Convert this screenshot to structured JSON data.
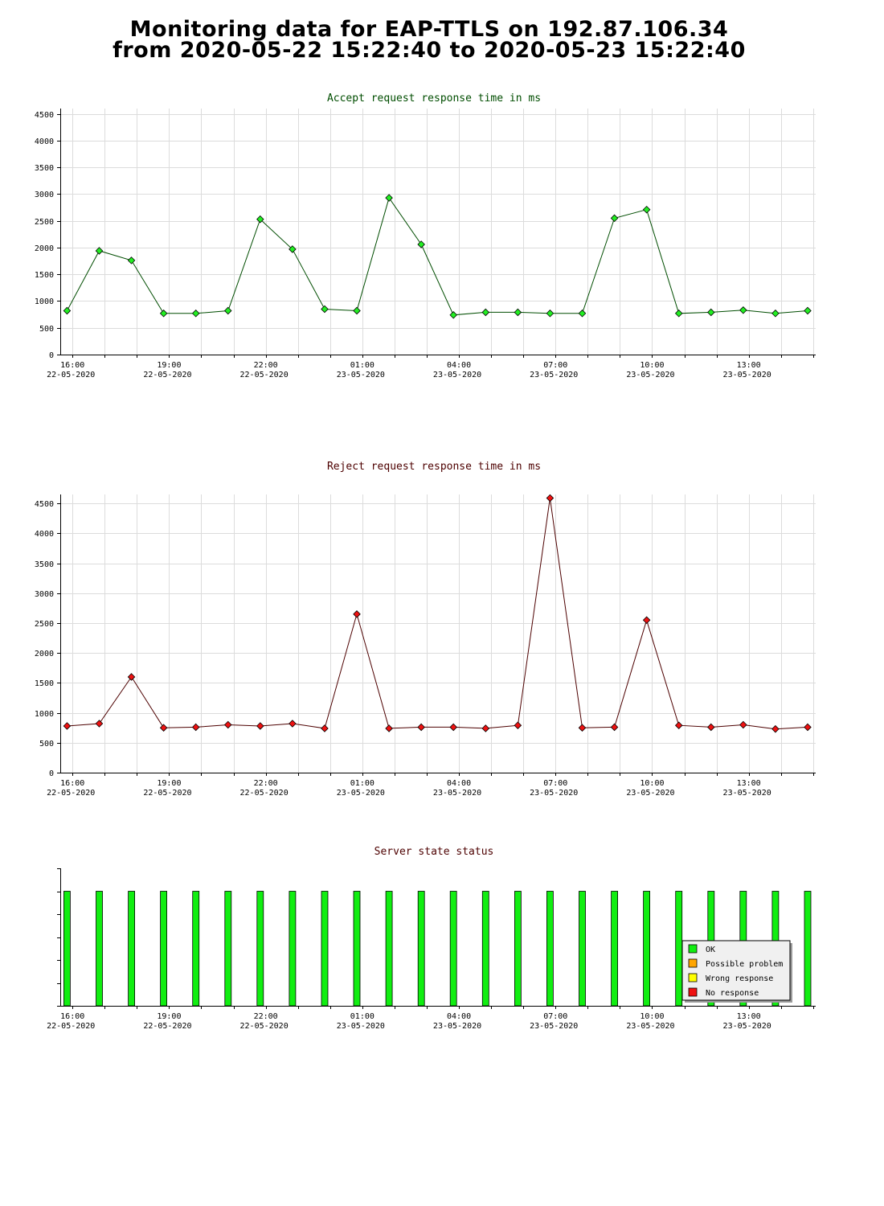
{
  "page": {
    "title_line1": "Monitoring data for EAP-TTLS on 192.87.106.34",
    "title_line2": "from 2020-05-22 15:22:40 to 2020-05-23 15:22:40"
  },
  "chart_data": [
    {
      "type": "line",
      "title": "Accept request response time in ms",
      "title_color": "#004d00",
      "line_color": "#004d00",
      "marker_color": "#22ee22",
      "ylim": [
        0,
        4600
      ],
      "yticks": [
        0,
        500,
        1000,
        1500,
        2000,
        2500,
        3000,
        3500,
        4000,
        4500
      ],
      "xlim": [
        15.62,
        39.08
      ],
      "x_tick_positions": [
        16,
        19,
        22,
        25,
        28,
        31,
        34,
        37
      ],
      "x_tick_labels": [
        [
          "16:00",
          "22-05-2020"
        ],
        [
          "19:00",
          "22-05-2020"
        ],
        [
          "22:00",
          "22-05-2020"
        ],
        [
          "01:00",
          "23-05-2020"
        ],
        [
          "04:00",
          "23-05-2020"
        ],
        [
          "07:00",
          "23-05-2020"
        ],
        [
          "10:00",
          "23-05-2020"
        ],
        [
          "13:00",
          "23-05-2020"
        ]
      ],
      "grid": true,
      "x": [
        15.83,
        16.83,
        17.83,
        18.83,
        19.83,
        20.83,
        21.83,
        22.83,
        23.83,
        24.83,
        25.83,
        26.83,
        27.83,
        28.83,
        29.83,
        30.83,
        31.83,
        32.83,
        33.83,
        34.83,
        35.83,
        36.83,
        37.83,
        38.83
      ],
      "values": [
        820,
        1940,
        1760,
        770,
        770,
        820,
        2530,
        1970,
        850,
        820,
        2930,
        2060,
        740,
        790,
        790,
        770,
        770,
        2550,
        2710,
        770,
        790,
        830,
        770,
        820
      ]
    },
    {
      "type": "line",
      "title": "Reject request response time in ms",
      "title_color": "#4d0000",
      "line_color": "#4d0000",
      "marker_color": "#ee1111",
      "ylim": [
        0,
        4650
      ],
      "yticks": [
        0,
        500,
        1000,
        1500,
        2000,
        2500,
        3000,
        3500,
        4000,
        4500
      ],
      "xlim": [
        15.62,
        39.08
      ],
      "x_tick_positions": [
        16,
        19,
        22,
        25,
        28,
        31,
        34,
        37
      ],
      "x_tick_labels": [
        [
          "16:00",
          "22-05-2020"
        ],
        [
          "19:00",
          "22-05-2020"
        ],
        [
          "22:00",
          "22-05-2020"
        ],
        [
          "01:00",
          "23-05-2020"
        ],
        [
          "04:00",
          "23-05-2020"
        ],
        [
          "07:00",
          "23-05-2020"
        ],
        [
          "10:00",
          "23-05-2020"
        ],
        [
          "13:00",
          "23-05-2020"
        ]
      ],
      "grid": true,
      "x": [
        15.83,
        16.83,
        17.83,
        18.83,
        19.83,
        20.83,
        21.83,
        22.83,
        23.83,
        24.83,
        25.83,
        26.83,
        27.83,
        28.83,
        29.83,
        30.83,
        31.83,
        32.83,
        33.83,
        34.83,
        35.83,
        36.83,
        37.83,
        38.83
      ],
      "values": [
        780,
        820,
        1600,
        750,
        760,
        800,
        780,
        820,
        740,
        2650,
        740,
        760,
        760,
        740,
        790,
        4590,
        750,
        760,
        2550,
        790,
        760,
        800,
        730,
        760
      ]
    },
    {
      "type": "bar",
      "title": "Server state status",
      "title_color": "#4d0000",
      "ylim": [
        0,
        1.2
      ],
      "xlim": [
        15.62,
        39.08
      ],
      "x_tick_positions": [
        16,
        19,
        22,
        25,
        28,
        31,
        34,
        37
      ],
      "x_tick_labels": [
        [
          "16:00",
          "22-05-2020"
        ],
        [
          "19:00",
          "22-05-2020"
        ],
        [
          "22:00",
          "22-05-2020"
        ],
        [
          "01:00",
          "23-05-2020"
        ],
        [
          "04:00",
          "23-05-2020"
        ],
        [
          "07:00",
          "23-05-2020"
        ],
        [
          "10:00",
          "23-05-2020"
        ],
        [
          "13:00",
          "23-05-2020"
        ]
      ],
      "grid": false,
      "x": [
        15.83,
        16.83,
        17.83,
        18.83,
        19.83,
        20.83,
        21.83,
        22.83,
        23.83,
        24.83,
        25.83,
        26.83,
        27.83,
        28.83,
        29.83,
        30.83,
        31.83,
        32.83,
        33.83,
        34.83,
        35.83,
        36.83,
        37.83,
        38.83
      ],
      "values": [
        1,
        1,
        1,
        1,
        1,
        1,
        1,
        1,
        1,
        1,
        1,
        1,
        1,
        1,
        1,
        1,
        1,
        1,
        1,
        1,
        1,
        1,
        1,
        1
      ],
      "bar_color": "#11ee11",
      "legend_position": "bottom-right",
      "legend": [
        {
          "label": "OK",
          "color": "#11ee11"
        },
        {
          "label": "Possible problem",
          "color": "#ffa500"
        },
        {
          "label": "Wrong response",
          "color": "#ffff00"
        },
        {
          "label": "No response",
          "color": "#ee1111"
        }
      ]
    }
  ]
}
